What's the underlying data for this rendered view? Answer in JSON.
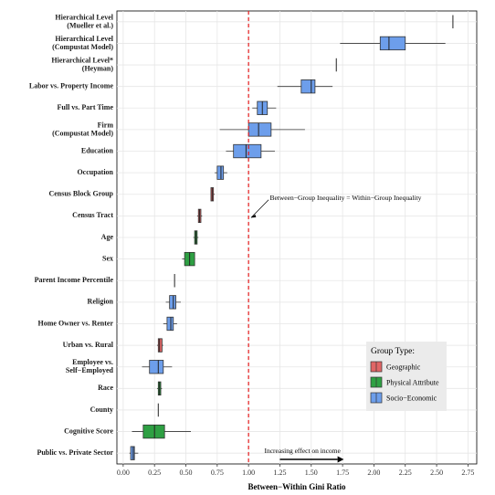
{
  "chart_data": {
    "type": "boxplot",
    "xlabel": "Between−Within Gini Ratio",
    "xlim": [
      -0.05,
      2.82
    ],
    "xticks": [
      "0.00",
      "0.25",
      "0.50",
      "0.75",
      "1.00",
      "1.25",
      "1.50",
      "1.75",
      "2.00",
      "2.25",
      "2.50",
      "2.75"
    ],
    "xtick_values": [
      0,
      0.25,
      0.5,
      0.75,
      1.0,
      1.25,
      1.5,
      1.75,
      2.0,
      2.25,
      2.5,
      2.75
    ],
    "reference_line": {
      "value": 1.0,
      "color": "#e41a1c",
      "style": "dashed"
    },
    "annotations": [
      {
        "text": "Between−Group Inequality = Within−Group Inequality"
      },
      {
        "text": "Increasing effect on income"
      }
    ],
    "legend": {
      "title": "Group Type:",
      "position": "bottom-right",
      "entries": [
        {
          "name": "Geographic",
          "color": "#e06666"
        },
        {
          "name": "Physical Attribute",
          "color": "#2ea043"
        },
        {
          "name": "Socio−Economic",
          "color": "#6d9eeb"
        }
      ]
    },
    "categories": [
      {
        "label": [
          "Hierarchical Level",
          "(Mueller et al.)"
        ],
        "group": "Socio−Economic",
        "wlo": 2.63,
        "q1": 2.63,
        "med": 2.63,
        "q3": 2.63,
        "whi": 2.63
      },
      {
        "label": [
          "Hierarchical Level",
          "(Compustat Model)"
        ],
        "group": "Socio−Economic",
        "wlo": 1.73,
        "q1": 2.05,
        "med": 2.12,
        "q3": 2.25,
        "whi": 2.57
      },
      {
        "label": [
          "Hierarchical Level*",
          "(Heyman)"
        ],
        "group": "Socio−Economic",
        "wlo": 1.7,
        "q1": 1.7,
        "med": 1.7,
        "q3": 1.7,
        "whi": 1.7
      },
      {
        "label": [
          "Labor vs. Property Income"
        ],
        "group": "Socio−Economic",
        "wlo": 1.23,
        "q1": 1.42,
        "med": 1.5,
        "q3": 1.53,
        "whi": 1.67
      },
      {
        "label": [
          "Full vs. Part Time"
        ],
        "group": "Socio−Economic",
        "wlo": 1.03,
        "q1": 1.07,
        "med": 1.11,
        "q3": 1.15,
        "whi": 1.22
      },
      {
        "label": [
          "Firm",
          "(Compustat Model)"
        ],
        "group": "Socio−Economic",
        "wlo": 0.77,
        "q1": 1.0,
        "med": 1.08,
        "q3": 1.18,
        "whi": 1.45
      },
      {
        "label": [
          "Education"
        ],
        "group": "Socio−Economic",
        "wlo": 0.82,
        "q1": 0.88,
        "med": 0.98,
        "q3": 1.1,
        "whi": 1.21
      },
      {
        "label": [
          "Occupation"
        ],
        "group": "Socio−Economic",
        "wlo": 0.73,
        "q1": 0.75,
        "med": 0.78,
        "q3": 0.8,
        "whi": 0.83
      },
      {
        "label": [
          "Census Block Group"
        ],
        "group": "Geographic",
        "wlo": 0.7,
        "q1": 0.7,
        "med": 0.71,
        "q3": 0.72,
        "whi": 0.73
      },
      {
        "label": [
          "Census Tract"
        ],
        "group": "Geographic",
        "wlo": 0.59,
        "q1": 0.6,
        "med": 0.61,
        "q3": 0.62,
        "whi": 0.63
      },
      {
        "label": [
          "Age"
        ],
        "group": "Physical Attribute",
        "wlo": 0.56,
        "q1": 0.57,
        "med": 0.58,
        "q3": 0.59,
        "whi": 0.6
      },
      {
        "label": [
          "Sex"
        ],
        "group": "Physical Attribute",
        "wlo": 0.47,
        "q1": 0.49,
        "med": 0.53,
        "q3": 0.57,
        "whi": 0.57
      },
      {
        "label": [
          "Parent Income Percentile"
        ],
        "group": "Socio−Economic",
        "wlo": 0.41,
        "q1": 0.41,
        "med": 0.41,
        "q3": 0.41,
        "whi": 0.41
      },
      {
        "label": [
          "Religion"
        ],
        "group": "Socio−Economic",
        "wlo": 0.34,
        "q1": 0.37,
        "med": 0.4,
        "q3": 0.42,
        "whi": 0.46
      },
      {
        "label": [
          "Home Owner vs. Renter"
        ],
        "group": "Socio−Economic",
        "wlo": 0.32,
        "q1": 0.35,
        "med": 0.38,
        "q3": 0.4,
        "whi": 0.43
      },
      {
        "label": [
          "Urban vs. Rural"
        ],
        "group": "Geographic",
        "wlo": 0.27,
        "q1": 0.28,
        "med": 0.29,
        "q3": 0.31,
        "whi": 0.32
      },
      {
        "label": [
          "Employee vs.",
          "Self−Employed"
        ],
        "group": "Socio−Economic",
        "wlo": 0.15,
        "q1": 0.21,
        "med": 0.28,
        "q3": 0.32,
        "whi": 0.39
      },
      {
        "label": [
          "Race"
        ],
        "group": "Physical Attribute",
        "wlo": 0.27,
        "q1": 0.28,
        "med": 0.29,
        "q3": 0.3,
        "whi": 0.31
      },
      {
        "label": [
          "County"
        ],
        "group": "Geographic",
        "wlo": 0.28,
        "q1": 0.28,
        "med": 0.28,
        "q3": 0.28,
        "whi": 0.28
      },
      {
        "label": [
          "Cognitive Score"
        ],
        "group": "Physical Attribute",
        "wlo": 0.07,
        "q1": 0.16,
        "med": 0.25,
        "q3": 0.33,
        "whi": 0.54
      },
      {
        "label": [
          "Public vs. Private Sector"
        ],
        "group": "Socio−Economic",
        "wlo": 0.05,
        "q1": 0.06,
        "med": 0.08,
        "q3": 0.09,
        "whi": 0.12
      }
    ]
  }
}
